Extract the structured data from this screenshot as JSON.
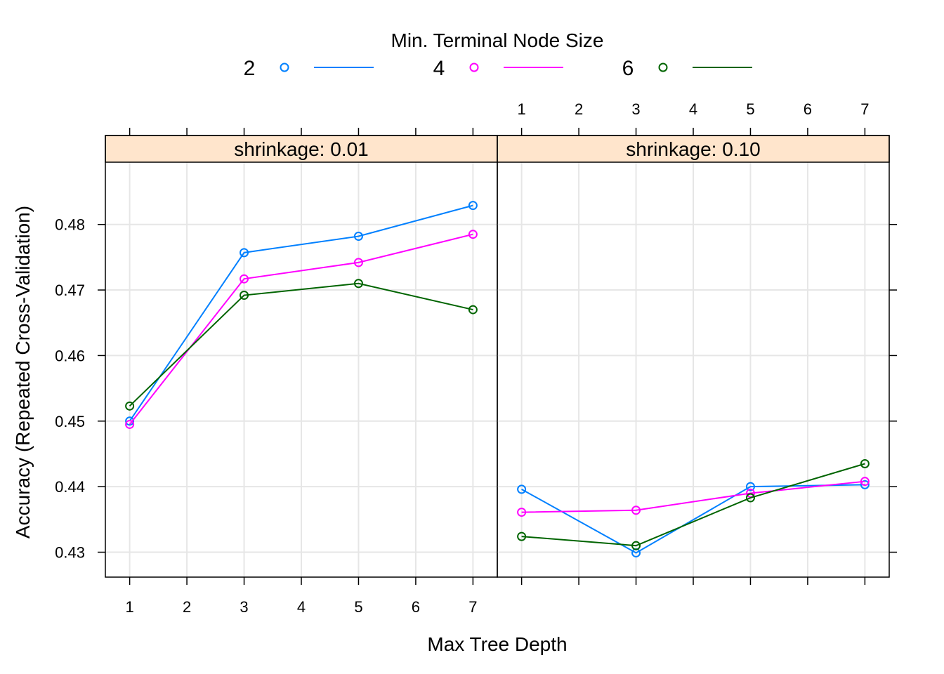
{
  "chart_data": {
    "type": "line",
    "legend": {
      "title": "Min. Terminal Node Size",
      "position": "top"
    },
    "xlabel": "Max Tree Depth",
    "ylabel": "Accuracy (Repeated Cross-Validation)",
    "x_ticks": [
      "1",
      "2",
      "3",
      "4",
      "5",
      "6",
      "7"
    ],
    "y_ticks": [
      "0.43",
      "0.44",
      "0.45",
      "0.46",
      "0.47",
      "0.48"
    ],
    "xlim": [
      0.575,
      7.425
    ],
    "ylim": [
      0.4262,
      0.4895
    ],
    "grid": true,
    "x": [
      1,
      3,
      5,
      7
    ],
    "series": [
      {
        "name": "2",
        "color": "#0080ff"
      },
      {
        "name": "4",
        "color": "#ff00ff"
      },
      {
        "name": "6",
        "color": "#006400"
      }
    ],
    "panels": [
      {
        "strip": "shrinkage: 0.01",
        "values": {
          "2": [
            0.45,
            0.4757,
            0.4782,
            0.4829
          ],
          "4": [
            0.4495,
            0.4717,
            0.4742,
            0.4785
          ],
          "6": [
            0.4523,
            0.4692,
            0.471,
            0.467
          ]
        }
      },
      {
        "strip": "shrinkage: 0.10",
        "values": {
          "2": [
            0.4396,
            0.4299,
            0.44,
            0.4403
          ],
          "4": [
            0.4361,
            0.4364,
            0.439,
            0.4408
          ],
          "6": [
            0.4324,
            0.431,
            0.4383,
            0.4435
          ]
        }
      }
    ],
    "strip_color": "#ffe5cc"
  }
}
